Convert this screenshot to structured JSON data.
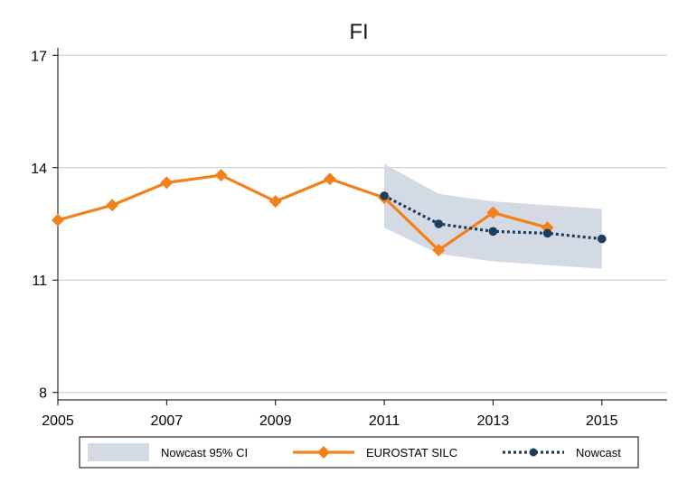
{
  "chart_data": {
    "type": "line",
    "title": "FI",
    "xlabel": "",
    "ylabel": "",
    "xlim": [
      2005,
      2016.2
    ],
    "ylim": [
      7.8,
      17.2
    ],
    "x_ticks": [
      2005,
      2007,
      2009,
      2011,
      2013,
      2015
    ],
    "x_tick_labels": [
      "2005",
      "2007",
      "2009",
      "2011",
      "2013",
      "2015"
    ],
    "y_ticks": [
      8,
      11,
      14,
      17
    ],
    "y_tick_labels": [
      "8",
      "11",
      "14",
      "17"
    ],
    "grid": true,
    "legend_position": "bottom",
    "series": [
      {
        "name": "Nowcast 95% CI",
        "kind": "band",
        "color": "#d3dae4",
        "x": [
          2011,
          2012,
          2013,
          2014,
          2015
        ],
        "lower": [
          12.4,
          11.7,
          11.5,
          11.4,
          11.3
        ],
        "upper": [
          14.1,
          13.3,
          13.1,
          13.0,
          12.9
        ]
      },
      {
        "name": "EUROSTAT SILC",
        "kind": "line",
        "color": "#f2801b",
        "marker": "diamond",
        "x": [
          2005,
          2006,
          2007,
          2008,
          2009,
          2010,
          2011,
          2012,
          2013,
          2014
        ],
        "y": [
          12.6,
          13.0,
          13.6,
          13.8,
          13.1,
          13.7,
          13.2,
          11.8,
          12.8,
          12.4
        ]
      },
      {
        "name": "Nowcast",
        "kind": "dotted-line",
        "color": "#1c3d5e",
        "marker": "circle",
        "x": [
          2011,
          2012,
          2013,
          2014,
          2015
        ],
        "y": [
          13.25,
          12.5,
          12.3,
          12.25,
          12.1
        ]
      }
    ]
  }
}
